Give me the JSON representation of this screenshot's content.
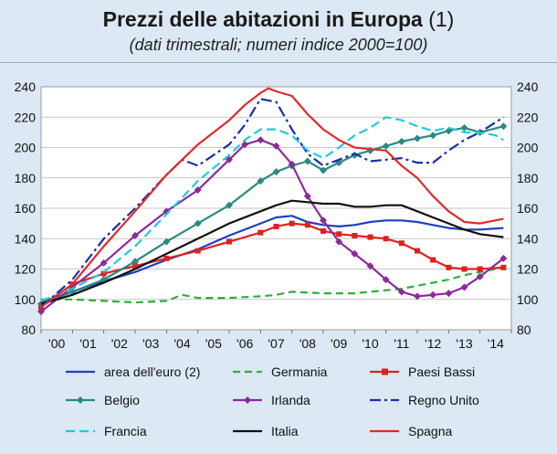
{
  "header": {
    "title": "Prezzi delle abitazioni in Europa",
    "title_note": "(1)",
    "subtitle": "(dati trimestrali; numeri indice 2000=100)"
  },
  "chart_data": {
    "type": "line",
    "title": "Prezzi delle abitazioni in Europa (1)",
    "subtitle": "(dati trimestrali; numeri indice 2000=100)",
    "ylim": [
      80,
      240
    ],
    "yticks": [
      80,
      100,
      120,
      140,
      160,
      180,
      200,
      220,
      240
    ],
    "ytick_labels": [
      "80",
      "100",
      "120",
      "140",
      "160",
      "180",
      "200",
      "220",
      "240"
    ],
    "xlim": [
      2000,
      2015
    ],
    "x_tick_labels": [
      "'00",
      "'01",
      "'02",
      "'03",
      "'04",
      "'05",
      "'06",
      "'07",
      "'08",
      "'09",
      "'10",
      "'11",
      "'12",
      "'13",
      "'14"
    ],
    "grid": true,
    "legend_position": "bottom",
    "series": [
      {
        "name": "area dell'euro (2)",
        "color": "#1f3fbf",
        "dash": "solid",
        "marker": "none",
        "x": [
          2000,
          2001,
          2002,
          2003,
          2004,
          2005,
          2006,
          2007,
          2007.5,
          2008,
          2008.5,
          2009,
          2009.5,
          2010,
          2010.5,
          2011,
          2011.5,
          2012,
          2012.5,
          2013,
          2013.5,
          2014,
          2014.75
        ],
        "y": [
          98,
          105,
          112,
          118,
          126,
          133,
          142,
          150,
          154,
          155,
          151,
          149,
          148,
          149,
          151,
          152,
          152,
          151,
          149,
          147,
          146,
          146,
          147
        ]
      },
      {
        "name": "Germania",
        "color": "#2fae3c",
        "dash": "8,5",
        "marker": "none",
        "x": [
          2000,
          2001,
          2002,
          2003,
          2004,
          2004.5,
          2005,
          2006,
          2007,
          2007.5,
          2008,
          2009,
          2010,
          2011,
          2011.5,
          2012,
          2012.5,
          2013,
          2013.5,
          2014,
          2014.75
        ],
        "y": [
          100,
          100,
          99,
          98,
          99,
          103,
          101,
          101,
          102,
          103,
          105,
          104,
          104,
          106,
          107,
          109,
          111,
          113,
          116,
          118,
          121
        ]
      },
      {
        "name": "Paesi Bassi",
        "color": "#e02020",
        "dash": "solid",
        "marker": "square",
        "x": [
          2000,
          2001,
          2002,
          2003,
          2004,
          2005,
          2006,
          2007,
          2007.5,
          2008,
          2008.5,
          2009,
          2009.5,
          2010,
          2010.5,
          2011,
          2011.5,
          2012,
          2012.5,
          2013,
          2013.5,
          2014,
          2014.75
        ],
        "y": [
          95,
          110,
          117,
          122,
          127,
          132,
          138,
          144,
          148,
          150,
          149,
          145,
          143,
          142,
          141,
          140,
          137,
          132,
          126,
          121,
          120,
          120,
          121
        ]
      },
      {
        "name": "Belgio",
        "color": "#2a8a80",
        "dash": "solid",
        "marker": "diamond",
        "x": [
          2000,
          2001,
          2002,
          2003,
          2004,
          2005,
          2006,
          2007,
          2007.5,
          2008,
          2008.5,
          2009,
          2009.5,
          2010,
          2010.5,
          2011,
          2011.5,
          2012,
          2012.5,
          2013,
          2013.5,
          2014,
          2014.75
        ],
        "y": [
          97,
          105,
          113,
          125,
          138,
          150,
          162,
          178,
          184,
          188,
          191,
          185,
          190,
          195,
          198,
          201,
          204,
          206,
          208,
          211,
          213,
          210,
          214
        ]
      },
      {
        "name": "Irlanda",
        "color": "#8b2a9a",
        "dash": "solid",
        "marker": "diamond",
        "x": [
          2000,
          2001,
          2002,
          2003,
          2004,
          2005,
          2006,
          2006.5,
          2007,
          2007.5,
          2008,
          2008.5,
          2009,
          2009.5,
          2010,
          2010.5,
          2011,
          2011.5,
          2012,
          2012.5,
          2013,
          2013.5,
          2014,
          2014.75
        ],
        "y": [
          92,
          108,
          124,
          142,
          158,
          172,
          192,
          202,
          205,
          201,
          189,
          168,
          152,
          138,
          130,
          122,
          113,
          105,
          102,
          103,
          104,
          108,
          115,
          127
        ]
      },
      {
        "name": "Regno Unito",
        "color": "#1a2fa8",
        "dash": "12,4,3,4",
        "marker": "none",
        "x": [
          2000,
          2001,
          2002,
          2003,
          2004,
          2004.5,
          2005,
          2006,
          2006.5,
          2007,
          2007.5,
          2008,
          2008.5,
          2009,
          2009.5,
          2010,
          2010.5,
          2011,
          2011.5,
          2012,
          2012.5,
          2013,
          2013.5,
          2014,
          2014.75
        ],
        "y": [
          95,
          113,
          140,
          160,
          182,
          192,
          188,
          202,
          215,
          232,
          230,
          212,
          196,
          188,
          192,
          196,
          191,
          192,
          193,
          190,
          190,
          198,
          205,
          210,
          220
        ]
      },
      {
        "name": "Francia",
        "color": "#22c8e0",
        "dash": "10,5",
        "marker": "none",
        "x": [
          2000,
          2001,
          2002,
          2003,
          2004,
          2005,
          2006,
          2006.5,
          2007,
          2007.5,
          2008,
          2008.5,
          2009,
          2009.5,
          2010,
          2010.5,
          2011,
          2011.5,
          2012,
          2012.5,
          2013,
          2013.5,
          2014,
          2014.5,
          2014.75
        ],
        "y": [
          99,
          107,
          118,
          135,
          156,
          178,
          195,
          205,
          212,
          212,
          208,
          198,
          193,
          200,
          208,
          213,
          220,
          218,
          214,
          211,
          213,
          210,
          210,
          208,
          205
        ]
      },
      {
        "name": "Italia",
        "color": "#111111",
        "dash": "solid",
        "marker": "none",
        "x": [
          2000,
          2001,
          2002,
          2003,
          2004,
          2005,
          2006,
          2007,
          2007.5,
          2008,
          2008.5,
          2009,
          2009.5,
          2010,
          2010.5,
          2011,
          2011.5,
          2012,
          2012.5,
          2013,
          2013.5,
          2014,
          2014.75
        ],
        "y": [
          97,
          103,
          111,
          120,
          130,
          140,
          150,
          158,
          162,
          165,
          164,
          163,
          163,
          161,
          161,
          162,
          162,
          158,
          154,
          150,
          146,
          143,
          141
        ]
      },
      {
        "name": "Spagna",
        "color": "#e02a2a",
        "dash": "solid",
        "marker": "none",
        "x": [
          2000,
          2001,
          2002,
          2003,
          2004,
          2005,
          2006,
          2006.5,
          2007,
          2007.25,
          2007.5,
          2008,
          2008.5,
          2009,
          2009.5,
          2010,
          2010.5,
          2011,
          2011.5,
          2012,
          2012.5,
          2013,
          2013.5,
          2014,
          2014.75
        ],
        "y": [
          95,
          110,
          135,
          158,
          182,
          202,
          218,
          228,
          236,
          239,
          237,
          234,
          222,
          212,
          205,
          200,
          199,
          198,
          188,
          180,
          168,
          158,
          151,
          150,
          153
        ]
      }
    ]
  }
}
